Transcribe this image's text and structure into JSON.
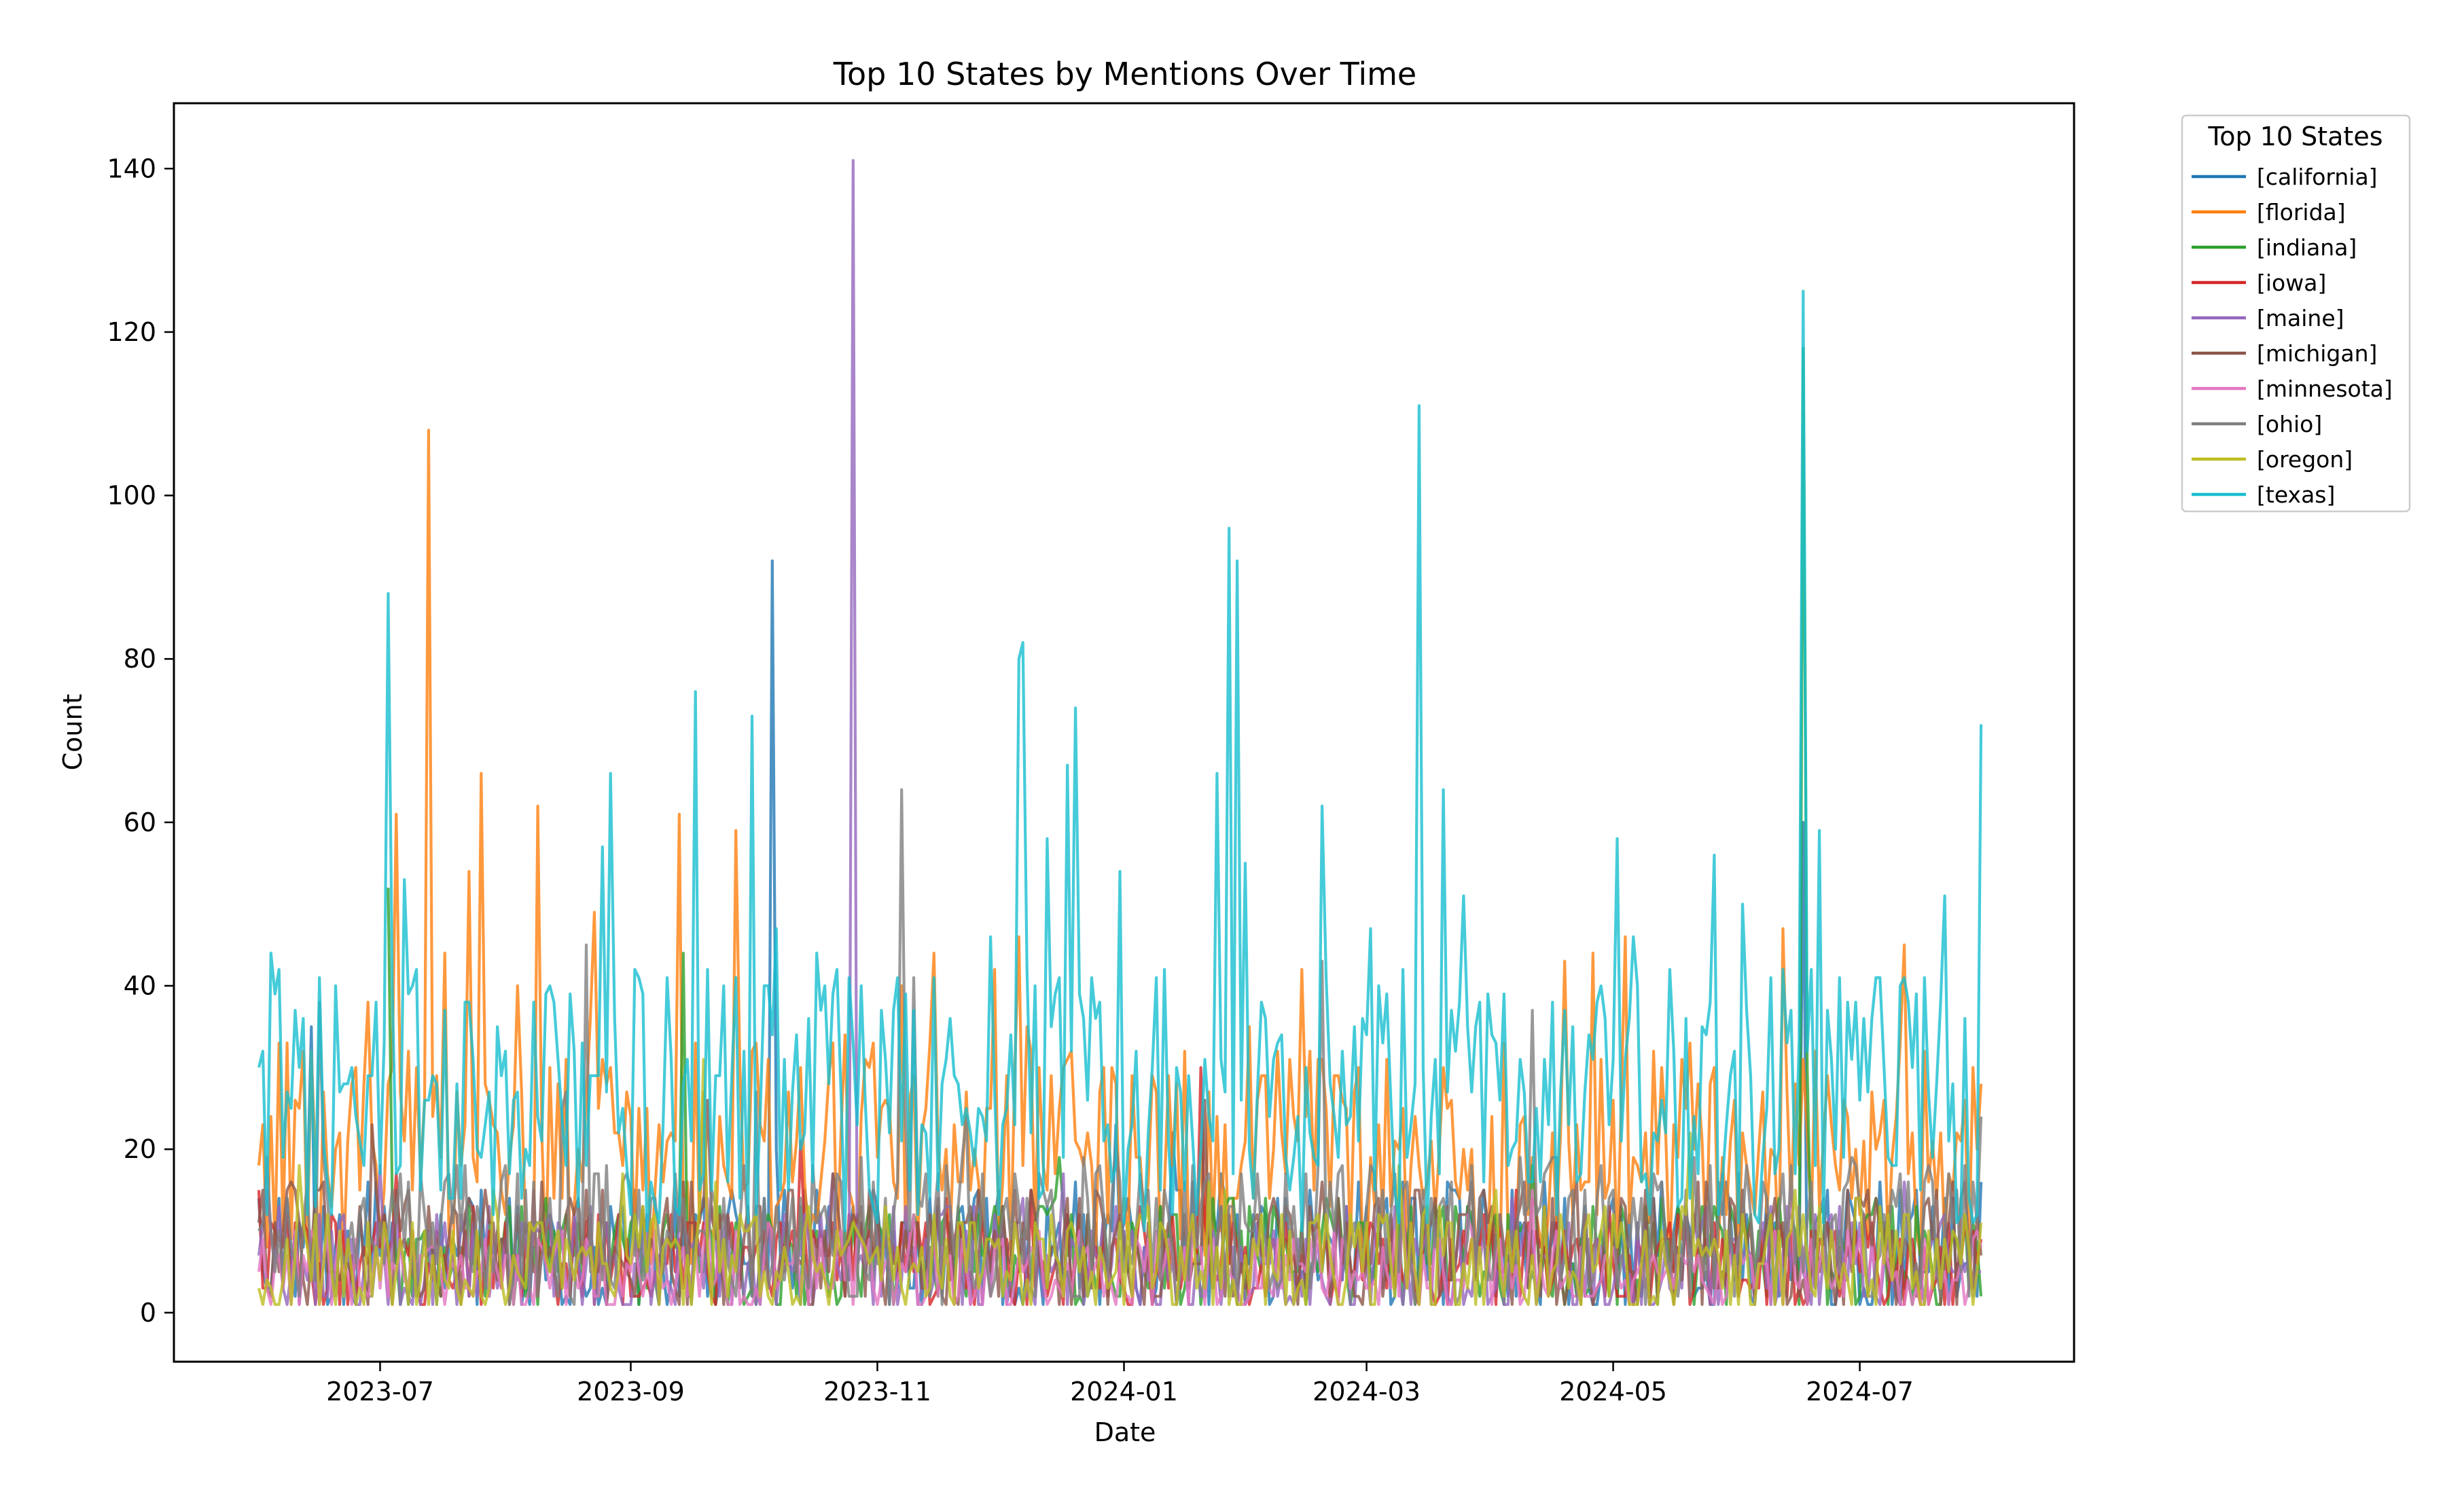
{
  "chart_data": {
    "type": "line",
    "title": "Top 10 States by Mentions Over Time",
    "xlabel": "Date",
    "ylabel": "Count",
    "x_range": [
      "2023-05-11",
      "2024-08-23"
    ],
    "ylim": [
      -6,
      148
    ],
    "x_ticks": [
      {
        "date": "2023-07-01",
        "label": "2023-07"
      },
      {
        "date": "2023-09-01",
        "label": "2023-09"
      },
      {
        "date": "2023-11-01",
        "label": "2023-11"
      },
      {
        "date": "2024-01-01",
        "label": "2024-01"
      },
      {
        "date": "2024-03-01",
        "label": "2024-03"
      },
      {
        "date": "2024-05-01",
        "label": "2024-05"
      },
      {
        "date": "2024-07-01",
        "label": "2024-07"
      }
    ],
    "y_ticks": [
      0,
      20,
      40,
      60,
      80,
      100,
      120,
      140
    ],
    "grid": false,
    "legend": {
      "title": "Top 10 States",
      "placement": "outside upper right"
    },
    "series": [
      {
        "name": "[california]",
        "color": "#1f77b4",
        "base": 8,
        "amp": 8,
        "seed": 1,
        "points": [
          [
            "2023-06-01",
            14
          ],
          [
            "2023-06-14",
            35
          ],
          [
            "2023-06-28",
            16
          ],
          [
            "2023-10-06",
            92
          ],
          [
            "2023-10-07",
            20
          ],
          [
            "2024-06-17",
            60
          ],
          [
            "2024-07-12",
            3
          ],
          [
            "2024-07-31",
            16
          ]
        ]
      },
      {
        "name": "[florida]",
        "color": "#ff7f0e",
        "base": 19,
        "amp": 14,
        "seed": 2,
        "points": [
          [
            "2023-06-01",
            18
          ],
          [
            "2023-06-28",
            38
          ],
          [
            "2023-07-05",
            61
          ],
          [
            "2023-07-13",
            108
          ],
          [
            "2023-07-17",
            44
          ],
          [
            "2023-07-23",
            54
          ],
          [
            "2023-07-26",
            66
          ],
          [
            "2023-08-09",
            62
          ],
          [
            "2023-08-23",
            49
          ],
          [
            "2023-09-13",
            61
          ],
          [
            "2023-09-27",
            59
          ],
          [
            "2023-10-24",
            34
          ],
          [
            "2023-11-15",
            44
          ],
          [
            "2023-11-30",
            42
          ],
          [
            "2024-02-14",
            42
          ],
          [
            "2024-04-19",
            43
          ],
          [
            "2024-04-26",
            44
          ],
          [
            "2024-06-12",
            47
          ],
          [
            "2024-07-12",
            45
          ],
          [
            "2024-07-31",
            28
          ]
        ]
      },
      {
        "name": "[indiana]",
        "color": "#2ca02c",
        "base": 7,
        "amp": 7,
        "seed": 3,
        "points": [
          [
            "2023-07-03",
            52
          ],
          [
            "2023-09-14",
            44
          ],
          [
            "2024-06-17",
            118
          ],
          [
            "2024-06-18",
            30
          ],
          [
            "2024-07-31",
            2
          ]
        ]
      },
      {
        "name": "[iowa]",
        "color": "#d62728",
        "base": 6,
        "amp": 6,
        "seed": 4,
        "points": [
          [
            "2023-06-01",
            15
          ],
          [
            "2023-07-05",
            17
          ],
          [
            "2023-10-13",
            21
          ],
          [
            "2024-01-20",
            30
          ],
          [
            "2024-07-31",
            9
          ]
        ]
      },
      {
        "name": "[maine]",
        "color": "#9467bd",
        "base": 6,
        "amp": 7,
        "seed": 5,
        "points": [
          [
            "2023-06-01",
            7
          ],
          [
            "2023-10-25",
            4
          ],
          [
            "2023-10-26",
            141
          ],
          [
            "2023-10-27",
            6
          ],
          [
            "2024-07-31",
            5
          ]
        ]
      },
      {
        "name": "[michigan]",
        "color": "#8c564b",
        "base": 8,
        "amp": 8,
        "seed": 6,
        "points": [
          [
            "2023-06-01",
            11
          ],
          [
            "2023-09-20",
            26
          ],
          [
            "2024-01-21",
            26
          ],
          [
            "2024-07-31",
            7
          ]
        ]
      },
      {
        "name": "[minnesota]",
        "color": "#e377c2",
        "base": 5,
        "amp": 5,
        "seed": 7,
        "points": [
          [
            "2023-06-01",
            5
          ],
          [
            "2024-07-31",
            8
          ]
        ]
      },
      {
        "name": "[ohio]",
        "color": "#7f7f7f",
        "base": 10,
        "amp": 9,
        "seed": 8,
        "points": [
          [
            "2023-06-01",
            10
          ],
          [
            "2023-06-16",
            38
          ],
          [
            "2023-08-21",
            45
          ],
          [
            "2023-11-07",
            64
          ],
          [
            "2023-11-10",
            41
          ],
          [
            "2024-02-19",
            43
          ],
          [
            "2024-04-11",
            37
          ],
          [
            "2024-07-31",
            24
          ]
        ]
      },
      {
        "name": "[oregon]",
        "color": "#bcbd22",
        "base": 6,
        "amp": 7,
        "seed": 9,
        "points": [
          [
            "2023-06-01",
            3
          ],
          [
            "2023-09-19",
            31
          ],
          [
            "2024-05-20",
            22
          ],
          [
            "2024-07-31",
            11
          ]
        ]
      },
      {
        "name": "[texas]",
        "color": "#17becf",
        "base": 26,
        "amp": 16,
        "seed": 10,
        "points": [
          [
            "2023-06-01",
            30
          ],
          [
            "2023-06-04",
            44
          ],
          [
            "2023-06-08",
            27
          ],
          [
            "2023-07-03",
            88
          ],
          [
            "2023-07-04",
            40
          ],
          [
            "2023-08-27",
            66
          ],
          [
            "2023-09-17",
            76
          ],
          [
            "2023-10-01",
            73
          ],
          [
            "2023-10-07",
            47
          ],
          [
            "2023-12-06",
            80
          ],
          [
            "2023-12-07",
            82
          ],
          [
            "2023-12-13",
            58
          ],
          [
            "2023-12-18",
            67
          ],
          [
            "2023-12-20",
            74
          ],
          [
            "2023-12-31",
            54
          ],
          [
            "2024-01-24",
            66
          ],
          [
            "2024-01-27",
            96
          ],
          [
            "2024-01-29",
            92
          ],
          [
            "2024-02-19",
            62
          ],
          [
            "2024-03-02",
            47
          ],
          [
            "2024-03-14",
            111
          ],
          [
            "2024-03-20",
            64
          ],
          [
            "2024-05-06",
            46
          ],
          [
            "2024-05-26",
            56
          ],
          [
            "2024-06-17",
            125
          ],
          [
            "2024-06-21",
            59
          ],
          [
            "2024-07-31",
            72
          ]
        ]
      }
    ]
  }
}
